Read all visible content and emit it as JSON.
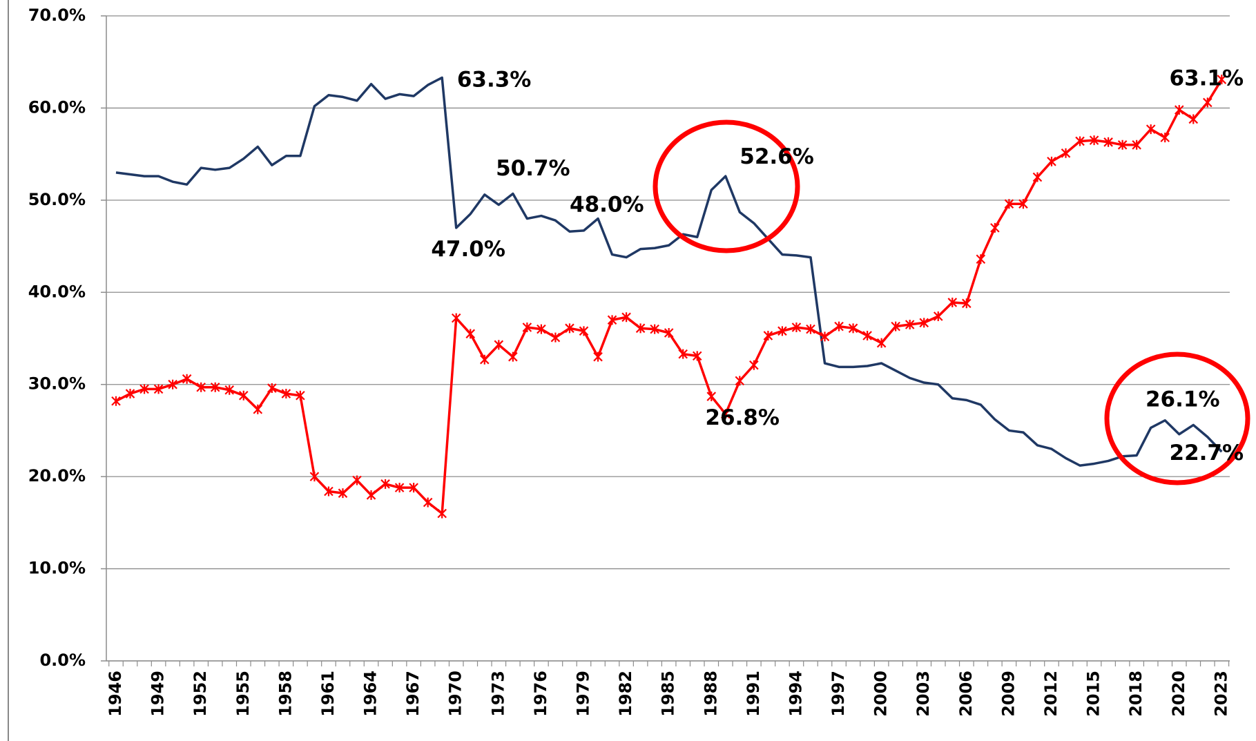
{
  "chart_data": {
    "type": "line",
    "categories": [
      "1946",
      null,
      null,
      "1949",
      null,
      null,
      "1952",
      null,
      null,
      "1955",
      null,
      null,
      "1958",
      null,
      null,
      "1961",
      null,
      null,
      "1964",
      null,
      null,
      "1967",
      null,
      null,
      "1970",
      null,
      null,
      "1973",
      null,
      null,
      "1976",
      null,
      null,
      "1979",
      null,
      null,
      "1982",
      null,
      null,
      "1985",
      null,
      null,
      "1988",
      null,
      null,
      "1991",
      null,
      null,
      "1994",
      null,
      null,
      "1997",
      null,
      null,
      "2000",
      null,
      null,
      "2003",
      null,
      null,
      "2006",
      null,
      null,
      "2009",
      null,
      null,
      "2012",
      null,
      null,
      "2015",
      null,
      null,
      "2018",
      null,
      null,
      "2020",
      null,
      null,
      "2023"
    ],
    "series": [
      {
        "color": "#1f3864",
        "marker": "none",
        "values": [
          53.0,
          52.8,
          52.6,
          52.6,
          52.0,
          51.7,
          53.5,
          53.3,
          53.5,
          54.5,
          55.8,
          53.8,
          54.8,
          54.8,
          60.2,
          61.4,
          61.2,
          60.8,
          62.6,
          61.0,
          61.5,
          61.3,
          62.5,
          63.3,
          47.0,
          48.5,
          50.6,
          49.5,
          50.7,
          48.0,
          48.3,
          47.8,
          46.6,
          46.7,
          48.0,
          44.1,
          43.8,
          44.7,
          44.8,
          45.1,
          46.3,
          46.0,
          51.1,
          52.6,
          48.7,
          47.5,
          45.8,
          44.1,
          44.0,
          43.8,
          32.3,
          31.9,
          31.9,
          32.0,
          32.3,
          31.5,
          30.7,
          30.2,
          30.0,
          28.5,
          28.3,
          27.8,
          26.2,
          25.0,
          24.8,
          23.4,
          23.0,
          22.0,
          21.2,
          21.4,
          21.7,
          22.2,
          22.3,
          25.3,
          26.1,
          24.6,
          25.6,
          24.3,
          22.7
        ],
        "value_labels": [
          null,
          null,
          null,
          null,
          null,
          null,
          null,
          null,
          null,
          null,
          null,
          null,
          null,
          null,
          null,
          null,
          null,
          null,
          null,
          null,
          null,
          null,
          null,
          "63.3%",
          "47.0%",
          null,
          null,
          null,
          "50.7%",
          null,
          null,
          null,
          null,
          null,
          "48.0%",
          null,
          null,
          null,
          null,
          null,
          null,
          null,
          null,
          "52.6%",
          null,
          null,
          null,
          null,
          null,
          null,
          null,
          null,
          null,
          null,
          null,
          null,
          null,
          null,
          null,
          null,
          null,
          null,
          null,
          null,
          null,
          null,
          null,
          null,
          null,
          null,
          null,
          null,
          null,
          null,
          "26.1%",
          null,
          null,
          null,
          "22.7%"
        ]
      },
      {
        "color": "#ff0000",
        "marker": "x",
        "values": [
          28.2,
          29.0,
          29.5,
          29.5,
          30.0,
          30.6,
          29.7,
          29.7,
          29.4,
          28.8,
          27.3,
          29.6,
          29.0,
          28.8,
          20.0,
          18.4,
          18.2,
          19.6,
          18.0,
          19.2,
          18.8,
          18.8,
          17.2,
          16.0,
          37.2,
          35.5,
          32.7,
          34.3,
          33.0,
          36.2,
          36.0,
          35.1,
          36.1,
          35.8,
          33.0,
          37.0,
          37.3,
          36.1,
          36.0,
          35.6,
          33.3,
          33.1,
          28.7,
          26.8,
          30.4,
          32.1,
          35.3,
          35.8,
          36.2,
          36.0,
          35.2,
          36.3,
          36.1,
          35.3,
          34.5,
          36.3,
          36.5,
          36.7,
          37.4,
          38.9,
          38.8,
          43.6,
          47.0,
          49.6,
          49.6,
          52.5,
          54.2,
          55.1,
          56.4,
          56.5,
          56.3,
          56.0,
          56.0,
          57.7,
          56.8,
          59.8,
          58.8,
          60.6,
          63.1
        ],
        "value_labels": [
          null,
          null,
          null,
          null,
          null,
          null,
          null,
          null,
          null,
          null,
          null,
          null,
          null,
          null,
          null,
          null,
          null,
          null,
          null,
          null,
          null,
          null,
          null,
          null,
          null,
          null,
          null,
          null,
          null,
          null,
          null,
          null,
          null,
          null,
          null,
          null,
          null,
          null,
          null,
          null,
          null,
          null,
          null,
          "26.8%",
          null,
          null,
          null,
          null,
          null,
          null,
          null,
          null,
          null,
          null,
          null,
          null,
          null,
          null,
          null,
          null,
          null,
          null,
          null,
          null,
          null,
          null,
          null,
          null,
          null,
          null,
          null,
          null,
          null,
          null,
          null,
          null,
          null,
          null,
          "63.1%"
        ]
      }
    ],
    "ylim": [
      0,
      70
    ],
    "yticks": [
      {
        "value": 0,
        "label": "0.0%"
      },
      {
        "value": 10,
        "label": "10.0%"
      },
      {
        "value": 20,
        "label": "20.0%"
      },
      {
        "value": 30,
        "label": "30.0%"
      },
      {
        "value": 40,
        "label": "40.0%"
      },
      {
        "value": 50,
        "label": "50.0%"
      },
      {
        "value": 60,
        "label": "60.0%"
      },
      {
        "value": 70,
        "label": "70.0%"
      }
    ],
    "grid": true
  }
}
